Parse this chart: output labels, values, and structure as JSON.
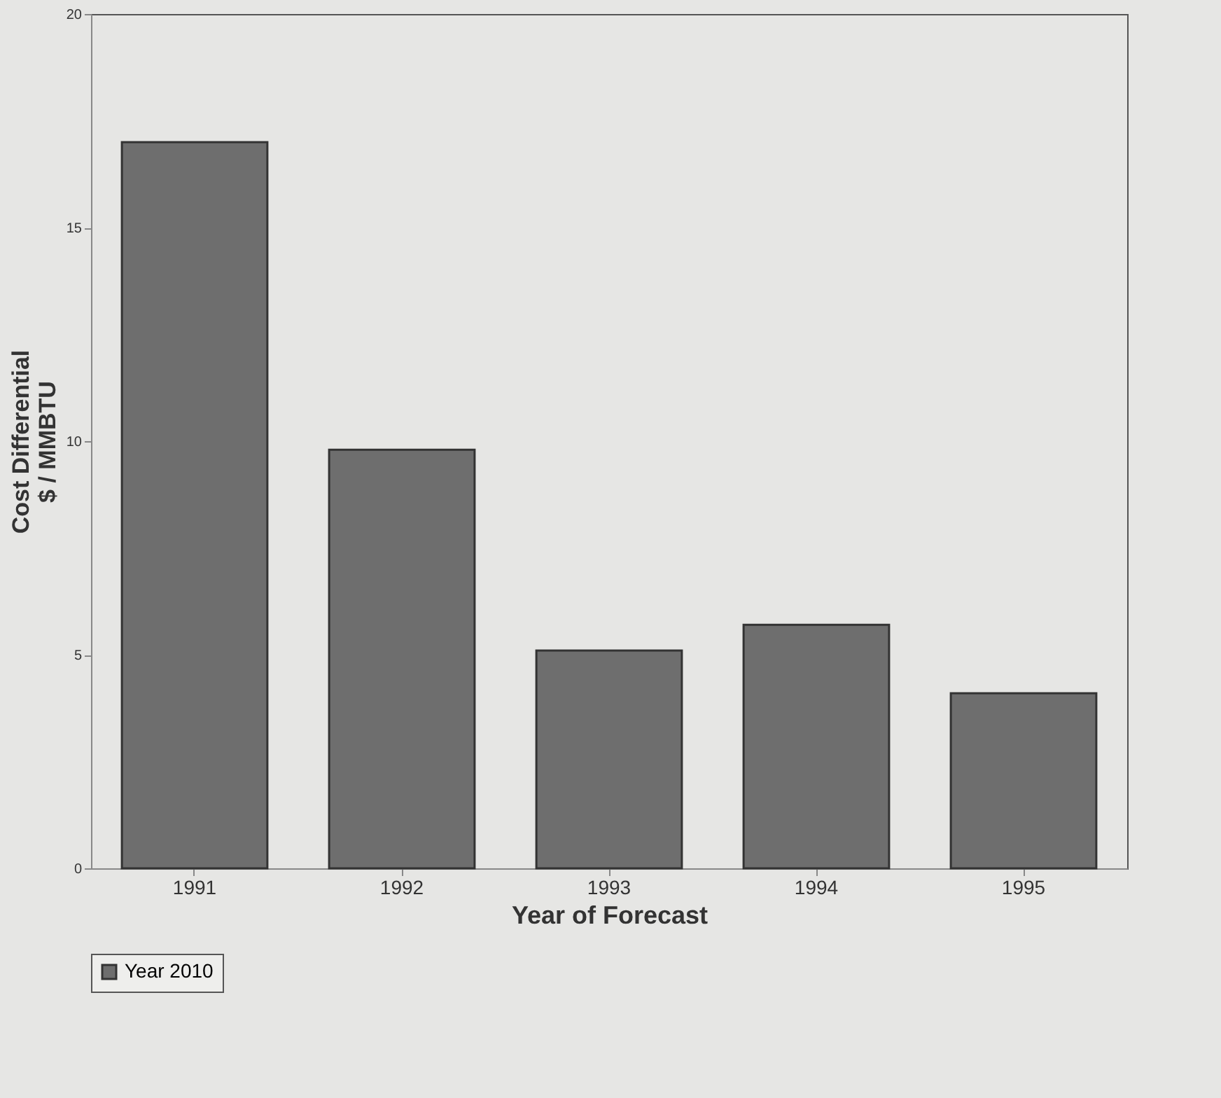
{
  "chart_data": {
    "type": "bar",
    "xlabel": "Year of Forecast",
    "ylabel": "Cost Differential\n$ / MMBTU",
    "categories": [
      "1991",
      "1992",
      "1993",
      "1994",
      "1995"
    ],
    "series": [
      {
        "name": "Year 2010",
        "color": "#6e6e6e",
        "values": [
          17,
          9.8,
          5.1,
          5.7,
          4.1
        ]
      }
    ],
    "ylim": [
      0,
      20
    ],
    "yticks": [
      0,
      5,
      10,
      15,
      20
    ],
    "grid": false,
    "legend": "bottom"
  }
}
